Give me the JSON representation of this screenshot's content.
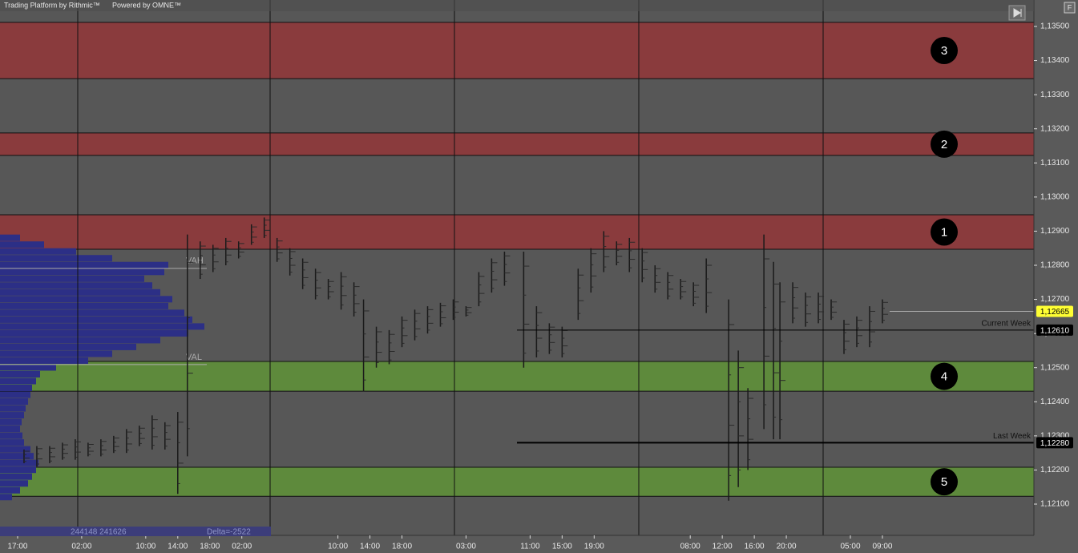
{
  "header": {
    "title": "Trading Platform by Rithmic™",
    "powered": "Powered by OMNE™",
    "button": "F"
  },
  "status": {
    "volumes": "244148 241626",
    "delta": "Delta=-2522"
  },
  "chart_data": {
    "type": "price-zones",
    "ylim": [
      1.120084,
      1.135775
    ],
    "yticks": [
      {
        "value": 1.135,
        "label": "1,13500"
      },
      {
        "value": 1.134,
        "label": "1,13400"
      },
      {
        "value": 1.133,
        "label": "1,13300"
      },
      {
        "value": 1.132,
        "label": "1,13200"
      },
      {
        "value": 1.131,
        "label": "1,13100"
      },
      {
        "value": 1.13,
        "label": "1,13000"
      },
      {
        "value": 1.129,
        "label": "1,12900"
      },
      {
        "value": 1.128,
        "label": "1,12800"
      },
      {
        "value": 1.127,
        "label": "1,12700"
      },
      {
        "value": 1.126,
        "label": "1,12600"
      },
      {
        "value": 1.125,
        "label": "1,12500"
      },
      {
        "value": 1.124,
        "label": "1,12400"
      },
      {
        "value": 1.123,
        "label": "1,12300"
      },
      {
        "value": 1.122,
        "label": "1,12200"
      },
      {
        "value": 1.121,
        "label": "1,12100"
      }
    ],
    "xlim": [
      -0.55,
      31.73
    ],
    "categories": [
      "17:00",
      null,
      "02:00",
      null,
      "10:00",
      "14:00",
      "18:00",
      "02:00",
      null,
      null,
      "10:00",
      "14:00",
      "18:00",
      null,
      "03:00",
      null,
      "11:00",
      "15:00",
      "19:00",
      null,
      null,
      "08:00",
      "12:00",
      "16:00",
      "20:00",
      null,
      "05:00",
      "09:00"
    ],
    "zones": [
      {
        "label": "3",
        "color": "#8a3b3d",
        "from": 1.13347,
        "to": 1.13512
      },
      {
        "label": "2",
        "color": "#8a3b3d",
        "from": 1.13122,
        "to": 1.13188
      },
      {
        "label": "1",
        "color": "#8a3b3d",
        "from": 1.12847,
        "to": 1.12948
      },
      {
        "label": "4",
        "color": "#5e8a3c",
        "from": 1.12431,
        "to": 1.12518
      },
      {
        "label": "5",
        "color": "#5e8a3c",
        "from": 1.12123,
        "to": 1.12208
      }
    ],
    "levels": [
      {
        "name": "Current Week",
        "value": 1.1261,
        "label": "1,12610"
      },
      {
        "name": "Last Week",
        "value": 1.1228,
        "label": "1,12280"
      }
    ],
    "last_price": {
      "value": 1.12665,
      "label": "1,12665"
    },
    "bar_x": [
      0.2,
      0.6,
      1.0,
      1.4,
      1.8,
      2.2,
      2.6,
      3.0,
      3.4,
      3.8,
      4.2,
      4.6,
      5.0,
      5.3,
      5.7,
      6.1,
      6.5,
      6.9,
      7.3,
      7.7,
      8.1,
      8.5,
      8.9,
      9.3,
      9.7,
      10.1,
      10.5,
      10.8,
      11.2,
      11.6,
      12.0,
      12.4,
      12.8,
      13.2,
      13.6,
      14.0,
      14.4,
      14.8,
      15.2,
      15.8,
      16.2,
      16.6,
      17.0,
      17.5,
      17.9,
      18.3,
      18.7,
      19.1,
      19.5,
      19.9,
      20.3,
      20.7,
      21.1,
      21.5,
      22.2,
      22.5,
      22.8,
      23.3,
      23.6,
      23.8,
      24.2,
      24.6,
      25.0,
      25.4,
      25.8,
      26.2,
      26.6,
      27.0
    ],
    "bar_low": [
      1.1222,
      1.1221,
      1.1222,
      1.1223,
      1.1223,
      1.1224,
      1.1224,
      1.1225,
      1.1225,
      1.1227,
      1.1226,
      1.1226,
      1.1213,
      1.1224,
      1.1276,
      1.1278,
      1.128,
      1.1282,
      1.1286,
      1.1288,
      1.1281,
      1.1277,
      1.1273,
      1.127,
      1.127,
      1.1267,
      1.1265,
      1.1243,
      1.125,
      1.1251,
      1.1256,
      1.1258,
      1.126,
      1.1262,
      1.1264,
      1.1265,
      1.1268,
      1.1272,
      1.1274,
      1.125,
      1.1253,
      1.1254,
      1.1253,
      1.1264,
      1.1272,
      1.1278,
      1.128,
      1.1278,
      1.1275,
      1.1272,
      1.127,
      1.127,
      1.1268,
      1.1266,
      1.1211,
      1.1215,
      1.122,
      1.1232,
      1.1229,
      1.1229,
      1.1263,
      1.1262,
      1.1263,
      1.1264,
      1.1254,
      1.1256,
      1.1256,
      1.1263
    ],
    "bar_high": [
      1.1226,
      1.1227,
      1.1227,
      1.1228,
      1.1229,
      1.1228,
      1.1229,
      1.123,
      1.1232,
      1.1233,
      1.1236,
      1.1234,
      1.1237,
      1.1289,
      1.1287,
      1.1286,
      1.1288,
      1.1287,
      1.1292,
      1.1294,
      1.1288,
      1.1285,
      1.1282,
      1.1279,
      1.1276,
      1.1278,
      1.1275,
      1.127,
      1.1262,
      1.1261,
      1.1265,
      1.1267,
      1.1268,
      1.1269,
      1.127,
      1.1268,
      1.1278,
      1.1282,
      1.1284,
      1.1284,
      1.1268,
      1.1263,
      1.1262,
      1.1279,
      1.1285,
      1.129,
      1.1287,
      1.1288,
      1.1285,
      1.128,
      1.1278,
      1.1276,
      1.1275,
      1.1282,
      1.127,
      1.1255,
      1.1244,
      1.1289,
      1.1281,
      1.1275,
      1.1275,
      1.1272,
      1.1272,
      1.127,
      1.1264,
      1.1265,
      1.1268,
      1.127
    ],
    "profile": {
      "color": "#2c2f86",
      "xlim": [
        0,
        300
      ],
      "prices": [
        1.1212,
        1.1214,
        1.1216,
        1.1218,
        1.122,
        1.1222,
        1.1224,
        1.1226,
        1.1228,
        1.123,
        1.1232,
        1.1234,
        1.1236,
        1.1238,
        1.124,
        1.1242,
        1.1244,
        1.1246,
        1.1248,
        1.125,
        1.1252,
        1.1254,
        1.1256,
        1.1258,
        1.126,
        1.1262,
        1.1264,
        1.1266,
        1.1268,
        1.127,
        1.1272,
        1.1274,
        1.1276,
        1.1278,
        1.128,
        1.1282,
        1.1284,
        1.1286,
        1.1288
      ],
      "volumes": [
        15,
        25,
        35,
        40,
        45,
        48,
        42,
        38,
        30,
        28,
        25,
        27,
        30,
        32,
        35,
        38,
        40,
        45,
        50,
        70,
        110,
        140,
        170,
        200,
        235,
        255,
        240,
        230,
        210,
        215,
        200,
        190,
        180,
        205,
        210,
        140,
        95,
        55,
        25
      ],
      "vah": {
        "value": 1.12791,
        "label": "VAH"
      },
      "val": {
        "value": 1.12509,
        "label": "VAL"
      }
    }
  }
}
